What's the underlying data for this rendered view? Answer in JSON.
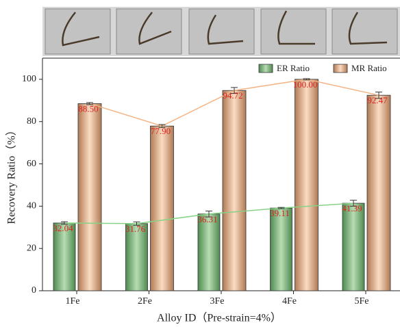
{
  "chart_data": {
    "type": "bar",
    "xlabel": "Alloy ID（Pre-strain=4%）",
    "ylabel": "Recovery Ratio（%）",
    "categories": [
      "1Fe",
      "2Fe",
      "3Fe",
      "4Fe",
      "5Fe"
    ],
    "series": [
      {
        "name": "ER Ratio",
        "color": "#7db87c",
        "line_color": "#86d386",
        "values": [
          32.04,
          31.76,
          36.31,
          39.11,
          41.39
        ],
        "value_labels": [
          "32.04",
          "31.76",
          "36.31",
          "39.11",
          "41.39"
        ],
        "errors": [
          0.6,
          0.8,
          1.4,
          0.3,
          1.4
        ]
      },
      {
        "name": "MR Ratio",
        "color": "#e9b691",
        "line_color": "#f5b383",
        "values": [
          88.5,
          77.9,
          94.72,
          100,
          92.47
        ],
        "value_labels": [
          "88.50",
          "77.90",
          "94.72",
          "100.00",
          "92.47"
        ],
        "errors": [
          0.5,
          0.7,
          1.4,
          0.3,
          1.5
        ]
      }
    ],
    "ylim": [
      0,
      110
    ],
    "yticks": [
      0,
      20,
      40,
      60,
      80,
      100
    ],
    "grid": false,
    "legend": "upper right",
    "label_color": "#e0201c"
  }
}
